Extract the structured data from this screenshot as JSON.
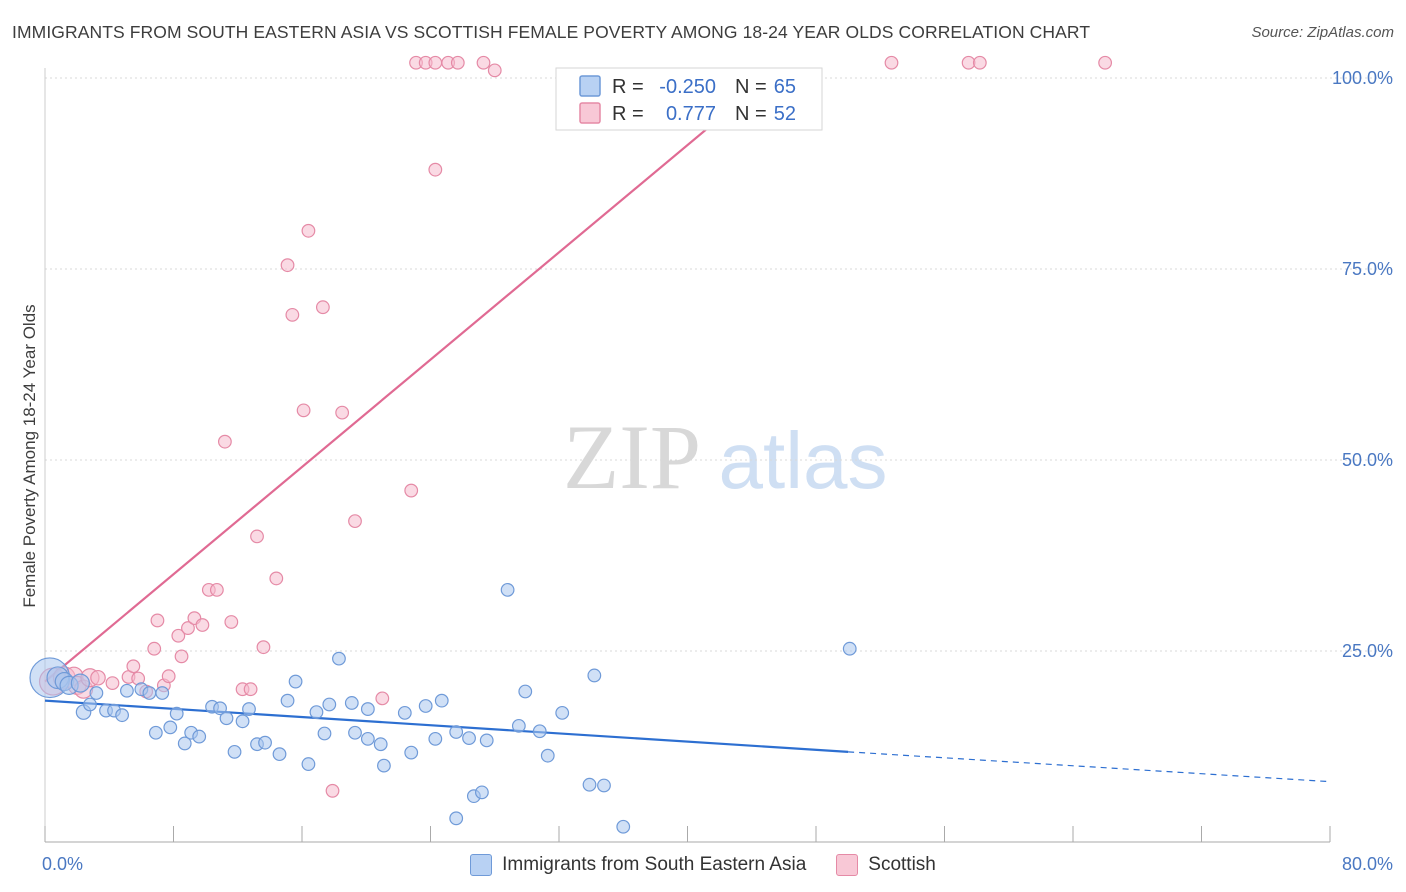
{
  "header": {
    "title": "IMMIGRANTS FROM SOUTH EASTERN ASIA VS SCOTTISH FEMALE POVERTY AMONG 18-24 YEAR OLDS CORRELATION CHART",
    "source": "Source: ZipAtlas.com"
  },
  "watermark": {
    "zip": "ZIP",
    "atlas": "atlas"
  },
  "colors": {
    "blue_fill": "#a9c7ef",
    "blue_stroke": "#6f9ad8",
    "blue_line": "#2d6fd1",
    "pink_fill": "#f6bccd",
    "pink_stroke": "#e58aa6",
    "pink_line": "#e06a93",
    "tick_text": "#4a78c2",
    "grid": "#d9d9d9"
  },
  "legend_box": {
    "rows": [
      {
        "r_label": "R =",
        "r_value": "-0.250",
        "n_label": "N =",
        "n_value": "65"
      },
      {
        "r_label": "R =",
        "r_value": "0.777",
        "n_label": "N =",
        "n_value": "52"
      }
    ]
  },
  "chart_data": {
    "type": "scatter",
    "xlabel": "",
    "ylabel": "Female Poverty Among 18-24 Year Olds",
    "xlim": [
      0,
      80
    ],
    "ylim": [
      0,
      102
    ],
    "x_tick_labels": [
      {
        "value": 0,
        "label": "0.0%"
      },
      {
        "value": 80,
        "label": "80.0%"
      }
    ],
    "y_tick_labels": [
      {
        "value": 25,
        "label": "25.0%"
      },
      {
        "value": 50,
        "label": "50.0%"
      },
      {
        "value": 75,
        "label": "75.0%"
      },
      {
        "value": 100,
        "label": "100.0%"
      }
    ],
    "legend_position": "bottom-center",
    "grid": true,
    "series": [
      {
        "name": "Immigrants from South Eastern Asia",
        "color": "#a9c7ef",
        "trend": {
          "x": [
            0,
            50
          ],
          "y": [
            18.5,
            11.8
          ],
          "dashed_to": [
            80,
            7.9
          ]
        },
        "points": [
          [
            0.3,
            21.5,
            2.2
          ],
          [
            0.8,
            21.5,
            1.2
          ],
          [
            1.2,
            21.0,
            1.0
          ],
          [
            1.5,
            20.5,
            1.0
          ],
          [
            2.2,
            20.8,
            1.0
          ],
          [
            2.4,
            17.0,
            0.8
          ],
          [
            2.8,
            18.0,
            0.7
          ],
          [
            3.2,
            19.5,
            0.7
          ],
          [
            3.8,
            17.2,
            0.7
          ],
          [
            4.3,
            17.2,
            0.7
          ],
          [
            4.8,
            16.6,
            0.7
          ],
          [
            5.1,
            19.8,
            0.7
          ],
          [
            6.0,
            20.0,
            0.7
          ],
          [
            6.5,
            19.5,
            0.7
          ],
          [
            6.9,
            14.3,
            0.7
          ],
          [
            7.3,
            19.5,
            0.7
          ],
          [
            7.8,
            15.0,
            0.7
          ],
          [
            8.2,
            16.8,
            0.7
          ],
          [
            8.7,
            12.9,
            0.7
          ],
          [
            9.1,
            14.3,
            0.7
          ],
          [
            9.6,
            13.8,
            0.7
          ],
          [
            10.4,
            17.7,
            0.7
          ],
          [
            10.9,
            17.5,
            0.7
          ],
          [
            11.3,
            16.2,
            0.7
          ],
          [
            11.8,
            11.8,
            0.7
          ],
          [
            12.3,
            15.8,
            0.7
          ],
          [
            12.7,
            17.4,
            0.7
          ],
          [
            13.2,
            12.8,
            0.7
          ],
          [
            13.7,
            13.0,
            0.7
          ],
          [
            14.6,
            11.5,
            0.7
          ],
          [
            15.1,
            18.5,
            0.7
          ],
          [
            15.6,
            21.0,
            0.7
          ],
          [
            16.4,
            10.2,
            0.7
          ],
          [
            16.9,
            17.0,
            0.7
          ],
          [
            17.4,
            14.2,
            0.7
          ],
          [
            17.7,
            18.0,
            0.7
          ],
          [
            18.3,
            24.0,
            0.7
          ],
          [
            19.1,
            18.2,
            0.7
          ],
          [
            19.3,
            14.3,
            0.7
          ],
          [
            20.1,
            17.4,
            0.7
          ],
          [
            20.1,
            13.5,
            0.7
          ],
          [
            20.9,
            12.8,
            0.7
          ],
          [
            21.1,
            10.0,
            0.7
          ],
          [
            22.4,
            16.9,
            0.7
          ],
          [
            22.8,
            11.7,
            0.7
          ],
          [
            23.7,
            17.8,
            0.7
          ],
          [
            24.3,
            13.5,
            0.7
          ],
          [
            24.7,
            18.5,
            0.7
          ],
          [
            25.6,
            3.1,
            0.7
          ],
          [
            25.6,
            14.4,
            0.7
          ],
          [
            26.4,
            13.6,
            0.7
          ],
          [
            26.7,
            6.0,
            0.7
          ],
          [
            27.2,
            6.5,
            0.7
          ],
          [
            27.5,
            13.3,
            0.7
          ],
          [
            28.8,
            33.0,
            0.7
          ],
          [
            29.5,
            15.2,
            0.7
          ],
          [
            29.9,
            19.7,
            0.7
          ],
          [
            30.8,
            14.5,
            0.7
          ],
          [
            31.3,
            11.3,
            0.7
          ],
          [
            32.2,
            16.9,
            0.7
          ],
          [
            33.9,
            7.5,
            0.7
          ],
          [
            34.2,
            21.8,
            0.7
          ],
          [
            34.8,
            7.4,
            0.7
          ],
          [
            36.0,
            2.0,
            0.7
          ],
          [
            50.1,
            25.3,
            0.7
          ]
        ]
      },
      {
        "name": "Scottish",
        "color": "#f6bccd",
        "trend": {
          "x": [
            0,
            45
          ],
          "y": [
            21.0,
            100.0
          ]
        },
        "points": [
          [
            0.5,
            21.0,
            1.5
          ],
          [
            1.2,
            21.5,
            1.2
          ],
          [
            1.8,
            21.7,
            1.0
          ],
          [
            2.0,
            20.5,
            1.0
          ],
          [
            2.4,
            20.0,
            1.0
          ],
          [
            2.8,
            21.5,
            1.0
          ],
          [
            3.3,
            21.5,
            0.8
          ],
          [
            4.2,
            20.8,
            0.7
          ],
          [
            5.2,
            21.6,
            0.7
          ],
          [
            5.5,
            23.0,
            0.7
          ],
          [
            5.8,
            21.4,
            0.7
          ],
          [
            6.3,
            19.7,
            0.7
          ],
          [
            6.8,
            25.3,
            0.7
          ],
          [
            7.0,
            29.0,
            0.7
          ],
          [
            7.4,
            20.5,
            0.7
          ],
          [
            7.7,
            21.7,
            0.7
          ],
          [
            8.3,
            27.0,
            0.7
          ],
          [
            8.5,
            24.3,
            0.7
          ],
          [
            8.9,
            28.0,
            0.7
          ],
          [
            9.3,
            29.3,
            0.7
          ],
          [
            9.8,
            28.4,
            0.7
          ],
          [
            10.2,
            33.0,
            0.7
          ],
          [
            10.7,
            33.0,
            0.7
          ],
          [
            11.2,
            52.4,
            0.7
          ],
          [
            11.6,
            28.8,
            0.7
          ],
          [
            12.3,
            20.0,
            0.7
          ],
          [
            12.8,
            20.0,
            0.7
          ],
          [
            13.2,
            40.0,
            0.7
          ],
          [
            13.6,
            25.5,
            0.7
          ],
          [
            14.4,
            34.5,
            0.7
          ],
          [
            15.1,
            75.5,
            0.7
          ],
          [
            15.4,
            69.0,
            0.7
          ],
          [
            16.1,
            56.5,
            0.7
          ],
          [
            16.4,
            80.0,
            0.7
          ],
          [
            17.3,
            70.0,
            0.7
          ],
          [
            17.9,
            6.7,
            0.7
          ],
          [
            18.5,
            56.2,
            0.7
          ],
          [
            19.3,
            42.0,
            0.7
          ],
          [
            21.0,
            18.8,
            0.7
          ],
          [
            22.8,
            46.0,
            0.7
          ],
          [
            23.1,
            102.0,
            0.7
          ],
          [
            23.7,
            102.0,
            0.7
          ],
          [
            24.3,
            102.0,
            0.7
          ],
          [
            24.3,
            88.0,
            0.7
          ],
          [
            25.1,
            102.0,
            0.7
          ],
          [
            25.7,
            102.0,
            0.7
          ],
          [
            27.3,
            102.0,
            0.7
          ],
          [
            28.0,
            101.0,
            0.7
          ],
          [
            52.7,
            102.0,
            0.7
          ],
          [
            57.5,
            102.0,
            0.7
          ],
          [
            58.2,
            102.0,
            0.7
          ],
          [
            66.0,
            102.0,
            0.7
          ]
        ]
      }
    ]
  },
  "bottom_legend": [
    {
      "label": "Immigrants from South Eastern Asia"
    },
    {
      "label": "Scottish"
    }
  ]
}
